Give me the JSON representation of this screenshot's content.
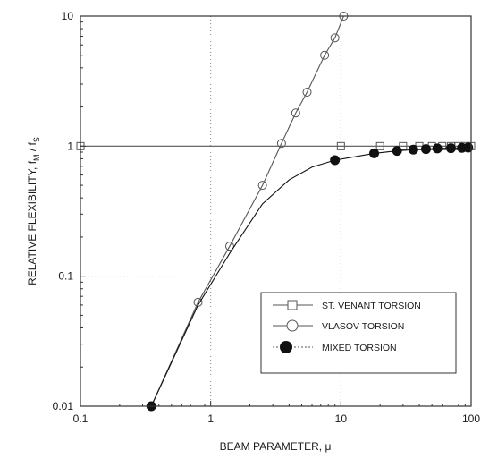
{
  "chart_data": {
    "type": "line",
    "title": "",
    "xlabel": "BEAM PARAMETER, μ",
    "ylabel_parts": {
      "main": "RELATIVE FLEXIBILITY, f",
      "sub_m": "M",
      "sep": " / f",
      "sub_s": "S"
    },
    "x_scale": "log",
    "y_scale": "log",
    "xlim": [
      0.1,
      100
    ],
    "ylim": [
      0.01,
      10
    ],
    "x_ticks": [
      0.1,
      1,
      10,
      100
    ],
    "x_tick_labels": [
      "0.1",
      "1",
      "10",
      "100"
    ],
    "y_ticks": [
      0.01,
      0.1,
      1,
      10
    ],
    "y_tick_labels": [
      "0.01",
      "0.1",
      "1",
      "10"
    ],
    "legend_position": "lower-right",
    "series": [
      {
        "name": "ST. VENANT TORSION",
        "marker": "square-open",
        "color": "#555555",
        "x": [
          0.1,
          10,
          20,
          30,
          40,
          50,
          60,
          70,
          80,
          90,
          100
        ],
        "y": [
          1,
          1,
          1,
          1,
          1,
          1,
          1,
          1,
          1,
          1,
          1
        ]
      },
      {
        "name": "VLASOV TORSION",
        "marker": "circle-open",
        "color": "#555555",
        "x": [
          0.35,
          0.8,
          1.4,
          2.5,
          3.5,
          4.5,
          5.5,
          7.5,
          9.0,
          10.5
        ],
        "y": [
          0.01,
          0.063,
          0.17,
          0.5,
          1.05,
          1.8,
          2.6,
          5.0,
          6.8,
          10
        ]
      },
      {
        "name": "MIXED TORSION",
        "marker": "circle-filled",
        "color": "#111111",
        "x": [
          0.35,
          0.8,
          1.4,
          2.5,
          4,
          6,
          9.0,
          18,
          27,
          36,
          45,
          55,
          70,
          85,
          95
        ],
        "y": [
          0.01,
          0.06,
          0.15,
          0.36,
          0.55,
          0.69,
          0.78,
          0.88,
          0.92,
          0.94,
          0.95,
          0.96,
          0.965,
          0.97,
          0.975
        ],
        "marker_x": [
          0.35,
          9.0,
          18,
          27,
          36,
          45,
          55,
          70,
          85,
          95
        ],
        "marker_y": [
          0.01,
          0.78,
          0.88,
          0.92,
          0.94,
          0.95,
          0.96,
          0.965,
          0.97,
          0.975
        ]
      }
    ]
  }
}
